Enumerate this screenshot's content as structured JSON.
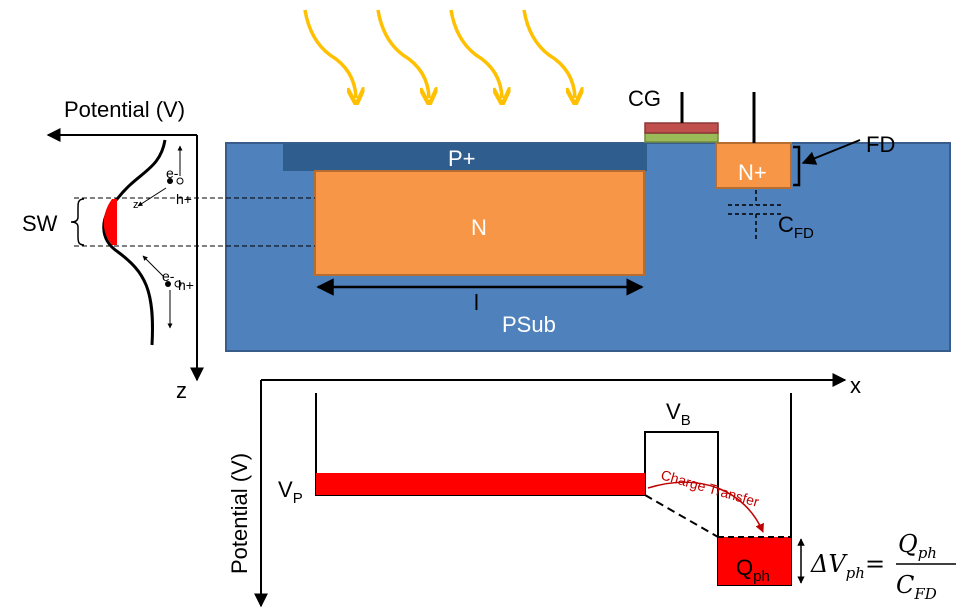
{
  "labels": {
    "cg": "CG",
    "fd": "FD",
    "p_plus": "P+",
    "n_region": "N",
    "n_plus": "N+",
    "psub": "PSub",
    "length": "l",
    "potential_top": "Potential (V)",
    "potential_bottom": "Potential (V)",
    "sw": "SW",
    "z": "z",
    "z_small": "z",
    "x": "x",
    "e_top": "e-",
    "h_top": "h+",
    "e_bot": "e-",
    "h_bot": "h+",
    "vp_main": "V",
    "vp_sub": "P",
    "vb_main": "V",
    "vb_sub": "B",
    "cfd_main": "C",
    "cfd_sub": "FD",
    "qph_main": "Q",
    "qph_sub": "ph",
    "charge_transfer": "Charge Transfer",
    "eq_delta": "ΔV",
    "eq_delta_sub": "ph",
    "eq_equals": "=",
    "eq_num": "Q",
    "eq_num_sub": "ph",
    "eq_den": "C",
    "eq_den_sub": "FD"
  },
  "colors": {
    "psub": "#4f81bd",
    "p_plus": "#2f5e8e",
    "n_region": "#f79646",
    "gate_red": "#c0504d",
    "gate_green": "#9bbb59",
    "light_arrow": "#ffc000",
    "charge": "#ff0000",
    "transfer": "#c00000"
  },
  "icons": {
    "light_rays": "curved-arrow-icon"
  }
}
